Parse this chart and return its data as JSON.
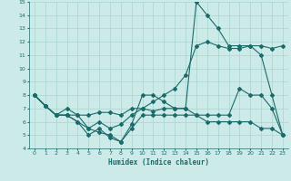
{
  "xlabel": "Humidex (Indice chaleur)",
  "xlim": [
    -0.5,
    23.5
  ],
  "ylim": [
    4,
    15
  ],
  "xticks": [
    0,
    1,
    2,
    3,
    4,
    5,
    6,
    7,
    8,
    9,
    10,
    11,
    12,
    13,
    14,
    15,
    16,
    17,
    18,
    19,
    20,
    21,
    22,
    23
  ],
  "yticks": [
    4,
    5,
    6,
    7,
    8,
    9,
    10,
    11,
    12,
    13,
    14,
    15
  ],
  "bg_color": "#cceae7",
  "line_color": "#1a6b6b",
  "grid_color": "#aad4d0",
  "curve1_x": [
    0,
    1,
    2,
    3,
    4,
    5,
    6,
    7,
    8,
    9,
    10,
    11,
    12,
    13,
    14,
    15,
    16,
    17,
    18,
    19,
    20,
    21,
    22,
    23
  ],
  "curve1_y": [
    8.0,
    7.2,
    6.5,
    7.0,
    6.5,
    5.5,
    5.2,
    5.0,
    4.5,
    5.8,
    8.0,
    8.0,
    7.5,
    7.0,
    7.0,
    15.0,
    14.0,
    13.0,
    11.7,
    11.7,
    11.7,
    11.0,
    8.0,
    5.0
  ],
  "curve2_x": [
    0,
    1,
    2,
    3,
    4,
    5,
    6,
    7,
    8,
    9,
    10,
    11,
    12,
    13,
    14,
    15,
    16,
    17,
    18,
    19,
    20,
    21,
    22,
    23
  ],
  "curve2_y": [
    8.0,
    7.2,
    6.5,
    6.5,
    6.5,
    6.5,
    6.7,
    6.7,
    6.5,
    7.0,
    7.0,
    7.5,
    8.0,
    8.5,
    9.5,
    11.7,
    12.0,
    11.7,
    11.5,
    11.5,
    11.7,
    11.7,
    11.5,
    11.7
  ],
  "curve3_x": [
    0,
    1,
    2,
    3,
    4,
    5,
    6,
    7,
    8,
    9,
    10,
    11,
    12,
    13,
    14,
    15,
    16,
    17,
    18,
    19,
    20,
    21,
    22,
    23
  ],
  "curve3_y": [
    8.0,
    7.2,
    6.5,
    6.5,
    6.0,
    5.5,
    6.0,
    5.5,
    5.8,
    6.5,
    7.0,
    6.8,
    7.0,
    7.0,
    7.0,
    6.5,
    6.5,
    6.5,
    6.5,
    8.5,
    8.0,
    8.0,
    7.0,
    5.0
  ],
  "curve4_x": [
    0,
    1,
    2,
    3,
    4,
    5,
    6,
    7,
    8,
    9,
    10,
    11,
    12,
    13,
    14,
    15,
    16,
    17,
    18,
    19,
    20,
    21,
    22,
    23
  ],
  "curve4_y": [
    8.0,
    7.2,
    6.5,
    6.5,
    6.0,
    5.0,
    5.5,
    4.8,
    4.5,
    5.5,
    6.5,
    6.5,
    6.5,
    6.5,
    6.5,
    6.5,
    6.0,
    6.0,
    6.0,
    6.0,
    6.0,
    5.5,
    5.5,
    5.0
  ]
}
